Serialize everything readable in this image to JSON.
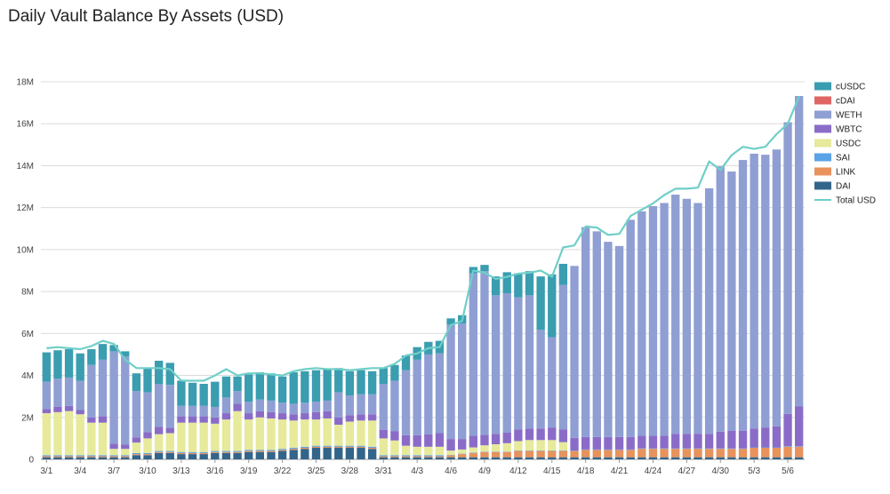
{
  "chart_data": {
    "type": "bar",
    "stacked": true,
    "title": "Daily Vault Balance By Assets (USD)",
    "xlabel": "",
    "ylabel": "",
    "ylim": [
      0,
      18000000
    ],
    "yticks": [
      {
        "value": 0,
        "label": "0"
      },
      {
        "value": 2000000,
        "label": "2M"
      },
      {
        "value": 4000000,
        "label": "4M"
      },
      {
        "value": 6000000,
        "label": "6M"
      },
      {
        "value": 8000000,
        "label": "8M"
      },
      {
        "value": 10000000,
        "label": "10M"
      },
      {
        "value": 12000000,
        "label": "12M"
      },
      {
        "value": 14000000,
        "label": "14M"
      },
      {
        "value": 16000000,
        "label": "16M"
      },
      {
        "value": 18000000,
        "label": "18M"
      }
    ],
    "grid": true,
    "legend_position": "right",
    "categories": [
      "3/1",
      "3/2",
      "3/3",
      "3/4",
      "3/5",
      "3/6",
      "3/7",
      "3/8",
      "3/9",
      "3/10",
      "3/11",
      "3/12",
      "3/13",
      "3/14",
      "3/15",
      "3/16",
      "3/17",
      "3/18",
      "3/19",
      "3/20",
      "3/21",
      "3/22",
      "3/23",
      "3/24",
      "3/25",
      "3/26",
      "3/27",
      "3/28",
      "3/29",
      "3/30",
      "3/31",
      "4/1",
      "4/2",
      "4/3",
      "4/4",
      "4/5",
      "4/6",
      "4/7",
      "4/8",
      "4/9",
      "4/10",
      "4/11",
      "4/12",
      "4/13",
      "4/14",
      "4/15",
      "4/16",
      "4/17",
      "4/18",
      "4/19",
      "4/20",
      "4/21",
      "4/22",
      "4/23",
      "4/24",
      "4/25",
      "4/26",
      "4/27",
      "4/28",
      "4/29",
      "4/30",
      "5/1",
      "5/2",
      "5/3",
      "5/4",
      "5/5",
      "5/6",
      "5/7"
    ],
    "xtick_labels": [
      "3/1",
      "3/4",
      "3/7",
      "3/10",
      "3/13",
      "3/16",
      "3/19",
      "3/22",
      "3/25",
      "3/28",
      "3/31",
      "4/3",
      "4/6",
      "4/9",
      "4/12",
      "4/15",
      "4/18",
      "4/21",
      "4/24",
      "4/27",
      "4/30",
      "5/3",
      "5/6"
    ],
    "series": [
      {
        "name": "DAI",
        "color": "#33658a",
        "values": [
          0.1,
          0.1,
          0.1,
          0.1,
          0.1,
          0.1,
          0.1,
          0.1,
          0.2,
          0.2,
          0.3,
          0.3,
          0.25,
          0.25,
          0.25,
          0.3,
          0.3,
          0.3,
          0.35,
          0.35,
          0.35,
          0.4,
          0.45,
          0.5,
          0.55,
          0.55,
          0.55,
          0.55,
          0.55,
          0.5,
          0.1,
          0.1,
          0.1,
          0.1,
          0.1,
          0.1,
          0.1,
          0.1,
          0.1,
          0.1,
          0.1,
          0.1,
          0.1,
          0.1,
          0.1,
          0.1,
          0.1,
          0.1,
          0.1,
          0.1,
          0.1,
          0.1,
          0.1,
          0.1,
          0.1,
          0.1,
          0.1,
          0.1,
          0.1,
          0.1,
          0.1,
          0.1,
          0.1,
          0.1,
          0.1,
          0.1,
          0.1,
          0.1
        ]
      },
      {
        "name": "LINK",
        "color": "#e8925c",
        "values": [
          0.05,
          0.05,
          0.05,
          0.05,
          0.05,
          0.05,
          0.05,
          0.05,
          0.05,
          0.05,
          0.05,
          0.05,
          0.05,
          0.05,
          0.05,
          0.05,
          0.05,
          0.05,
          0.05,
          0.05,
          0.05,
          0.05,
          0.05,
          0.05,
          0.05,
          0.05,
          0.05,
          0.05,
          0.05,
          0.05,
          0.05,
          0.05,
          0.05,
          0.05,
          0.05,
          0.05,
          0.1,
          0.15,
          0.2,
          0.25,
          0.25,
          0.25,
          0.3,
          0.3,
          0.3,
          0.3,
          0.3,
          0.3,
          0.35,
          0.35,
          0.35,
          0.35,
          0.35,
          0.4,
          0.4,
          0.4,
          0.4,
          0.4,
          0.4,
          0.4,
          0.4,
          0.4,
          0.4,
          0.45,
          0.45,
          0.45,
          0.5,
          0.5
        ]
      },
      {
        "name": "SAI",
        "color": "#5aa3e6",
        "values": [
          0.05,
          0.05,
          0.05,
          0.05,
          0.05,
          0.05,
          0.05,
          0.05,
          0.05,
          0.05,
          0.05,
          0.05,
          0.05,
          0.05,
          0.05,
          0.05,
          0.05,
          0.05,
          0.05,
          0.05,
          0.05,
          0.05,
          0.05,
          0.05,
          0.05,
          0.05,
          0.05,
          0.05,
          0.05,
          0.05,
          0.05,
          0.05,
          0.05,
          0.05,
          0.05,
          0.05,
          0.02,
          0.02,
          0.02,
          0.02,
          0.02,
          0.02,
          0.02,
          0.02,
          0.02,
          0.02,
          0.02,
          0.02,
          0.02,
          0.02,
          0.02,
          0.02,
          0.02,
          0.02,
          0.02,
          0.02,
          0.02,
          0.02,
          0.02,
          0.02,
          0.02,
          0.02,
          0.02,
          0.02,
          0.02,
          0.02,
          0.02,
          0.02
        ]
      },
      {
        "name": "USDC",
        "color": "#e6ea9a",
        "values": [
          2.0,
          2.05,
          2.1,
          1.95,
          1.55,
          1.55,
          0.3,
          0.3,
          0.5,
          0.7,
          0.8,
          0.85,
          1.4,
          1.4,
          1.4,
          1.3,
          1.5,
          1.9,
          1.45,
          1.55,
          1.5,
          1.4,
          1.3,
          1.3,
          1.25,
          1.3,
          1.0,
          1.15,
          1.2,
          1.25,
          0.8,
          0.7,
          0.45,
          0.4,
          0.4,
          0.4,
          0.2,
          0.2,
          0.25,
          0.3,
          0.35,
          0.4,
          0.45,
          0.5,
          0.5,
          0.5,
          0.4,
          0.0,
          0.0,
          0.0,
          0.0,
          0.0,
          0.0,
          0.0,
          0.0,
          0.0,
          0.0,
          0.0,
          0.0,
          0.0,
          0.0,
          0.0,
          0.0,
          0.0,
          0.0,
          0.0,
          0.0,
          0.0
        ]
      },
      {
        "name": "WBTC",
        "color": "#8a6cc8",
        "values": [
          0.2,
          0.25,
          0.25,
          0.2,
          0.25,
          0.3,
          0.25,
          0.2,
          0.25,
          0.3,
          0.35,
          0.25,
          0.3,
          0.3,
          0.3,
          0.3,
          0.3,
          0.35,
          0.3,
          0.3,
          0.3,
          0.3,
          0.3,
          0.3,
          0.35,
          0.35,
          0.35,
          0.3,
          0.3,
          0.3,
          0.4,
          0.45,
          0.5,
          0.55,
          0.6,
          0.65,
          0.55,
          0.5,
          0.55,
          0.5,
          0.5,
          0.5,
          0.55,
          0.55,
          0.55,
          0.6,
          0.6,
          0.6,
          0.6,
          0.6,
          0.6,
          0.6,
          0.6,
          0.6,
          0.6,
          0.6,
          0.7,
          0.7,
          0.7,
          0.7,
          0.8,
          0.85,
          0.85,
          0.9,
          0.95,
          1.0,
          1.55,
          1.9
        ]
      },
      {
        "name": "WETH",
        "color": "#8f9fd3",
        "values": [
          1.3,
          1.35,
          1.35,
          1.4,
          2.5,
          2.7,
          4.4,
          4.2,
          2.2,
          1.9,
          2.05,
          2.05,
          0.5,
          0.5,
          0.5,
          0.5,
          0.75,
          0.6,
          0.55,
          0.55,
          0.55,
          0.5,
          0.5,
          0.5,
          0.5,
          0.5,
          1.2,
          0.95,
          0.95,
          0.95,
          2.2,
          2.4,
          3.1,
          3.6,
          3.8,
          3.8,
          5.45,
          5.5,
          7.75,
          7.8,
          6.6,
          6.65,
          6.3,
          6.35,
          4.7,
          4.3,
          6.9,
          8.2,
          10.0,
          9.8,
          9.3,
          9.1,
          10.35,
          10.7,
          10.95,
          11.1,
          11.4,
          11.2,
          11.0,
          11.7,
          12.65,
          12.35,
          12.9,
          13.1,
          13.0,
          13.2,
          13.9,
          14.8
        ]
      },
      {
        "name": "cDAI",
        "color": "#e06666",
        "values": [
          0.0,
          0.0,
          0.0,
          0.0,
          0.0,
          0.0,
          0.0,
          0.0,
          0.0,
          0.0,
          0.0,
          0.0,
          0.0,
          0.0,
          0.0,
          0.0,
          0.0,
          0.0,
          0.0,
          0.0,
          0.0,
          0.0,
          0.0,
          0.0,
          0.0,
          0.0,
          0.0,
          0.0,
          0.0,
          0.0,
          0.0,
          0.0,
          0.0,
          0.0,
          0.0,
          0.0,
          0.0,
          0.0,
          0.0,
          0.0,
          0.0,
          0.0,
          0.0,
          0.0,
          0.0,
          0.0,
          0.0,
          0.0,
          0.0,
          0.0,
          0.0,
          0.0,
          0.0,
          0.0,
          0.0,
          0.0,
          0.0,
          0.0,
          0.0,
          0.0,
          0.0,
          0.0,
          0.0,
          0.0,
          0.0,
          0.0,
          0.0,
          0.0
        ]
      },
      {
        "name": "cUSDC",
        "color": "#3a9db0",
        "values": [
          1.4,
          1.35,
          1.35,
          1.3,
          0.75,
          0.75,
          0.3,
          0.25,
          0.85,
          1.15,
          1.1,
          1.05,
          1.2,
          1.1,
          1.05,
          1.2,
          1.0,
          0.7,
          1.3,
          1.3,
          1.3,
          1.25,
          1.5,
          1.5,
          1.5,
          1.5,
          1.15,
          1.15,
          1.15,
          1.1,
          0.75,
          0.75,
          0.7,
          0.6,
          0.6,
          0.6,
          0.3,
          0.4,
          0.3,
          0.3,
          0.9,
          1.0,
          1.15,
          1.15,
          2.55,
          3.0,
          1.0,
          0.0,
          0.0,
          0.0,
          0.0,
          0.0,
          0.0,
          0.0,
          0.0,
          0.0,
          0.0,
          0.0,
          0.0,
          0.0,
          0.0,
          0.0,
          0.0,
          0.0,
          0.0,
          0.0,
          0.0,
          0.0
        ]
      }
    ],
    "line": {
      "name": "Total USD",
      "color": "#6fcfc8",
      "values": [
        5.3,
        5.35,
        5.3,
        5.25,
        5.4,
        5.65,
        5.5,
        4.75,
        4.35,
        4.35,
        4.35,
        4.3,
        3.75,
        3.75,
        3.75,
        4.0,
        4.3,
        4.0,
        4.1,
        4.1,
        4.05,
        4.0,
        4.2,
        4.3,
        4.35,
        4.3,
        4.3,
        4.25,
        4.3,
        4.35,
        4.35,
        4.55,
        4.95,
        5.05,
        5.3,
        5.35,
        6.4,
        6.6,
        9.0,
        8.9,
        8.6,
        8.7,
        8.85,
        8.9,
        9.0,
        8.7,
        10.1,
        10.2,
        11.1,
        11.05,
        10.7,
        10.75,
        11.6,
        11.9,
        12.2,
        12.6,
        12.9,
        12.9,
        12.95,
        14.2,
        13.8,
        14.5,
        14.9,
        14.8,
        14.9,
        15.5,
        16.0,
        17.3
      ]
    },
    "unit_multiplier": 1000000,
    "legend_order": [
      "cUSDC",
      "cDAI",
      "WETH",
      "WBTC",
      "USDC",
      "SAI",
      "LINK",
      "DAI",
      "Total USD"
    ]
  }
}
